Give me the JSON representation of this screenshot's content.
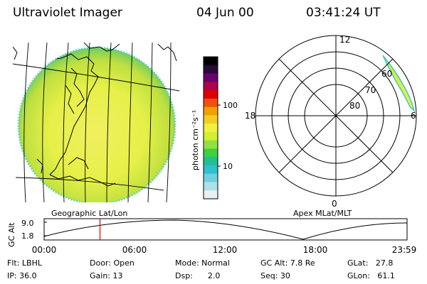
{
  "header": {
    "title": "Ultraviolet Imager",
    "date": "04 Jun 00",
    "time": "03:41:24 UT"
  },
  "colorbar": {
    "label": "photon cm⁻²s⁻¹",
    "tick_high": "100",
    "tick_low": "10",
    "colors": [
      "#000000",
      "#2a0a3a",
      "#6a006a",
      "#b0004a",
      "#e00000",
      "#f05010",
      "#f0a000",
      "#f0d020",
      "#f0f040",
      "#d0f030",
      "#90e040",
      "#40d040",
      "#20c090",
      "#30c0d0",
      "#70d0e0",
      "#b0e0e8",
      "#e8f0f4"
    ]
  },
  "panels": {
    "left_label": "Geographic Lat/Lon",
    "right_label": "Apex MLat/MLT"
  },
  "polar_plot": {
    "mlt_top": "12",
    "mlt_left": "18",
    "mlt_right": "6",
    "mlt_bottom": "0",
    "lat_60": "60",
    "lat_70": "70",
    "lat_80": "80"
  },
  "altitude_plot": {
    "ylabel": "GC Alt",
    "ytick_high": "9.0",
    "ytick_low": "1.8",
    "xticks": [
      "00:00",
      "06:00",
      "12:00",
      "18:00",
      "23:59"
    ],
    "current_time_hours": 3.69
  },
  "info": {
    "flt": "Flt: LBHL",
    "door": "Door: Open",
    "mode": "Mode: Normal",
    "gcalt": "GC Alt: 7.8 Re",
    "glat": "GLat:   27.8",
    "ip": "IP: 36.0",
    "gain": "Gain: 13",
    "dsp": "Dsp:      2.0",
    "seq": "Seq: 30",
    "glon": "GLon:   61.1"
  }
}
